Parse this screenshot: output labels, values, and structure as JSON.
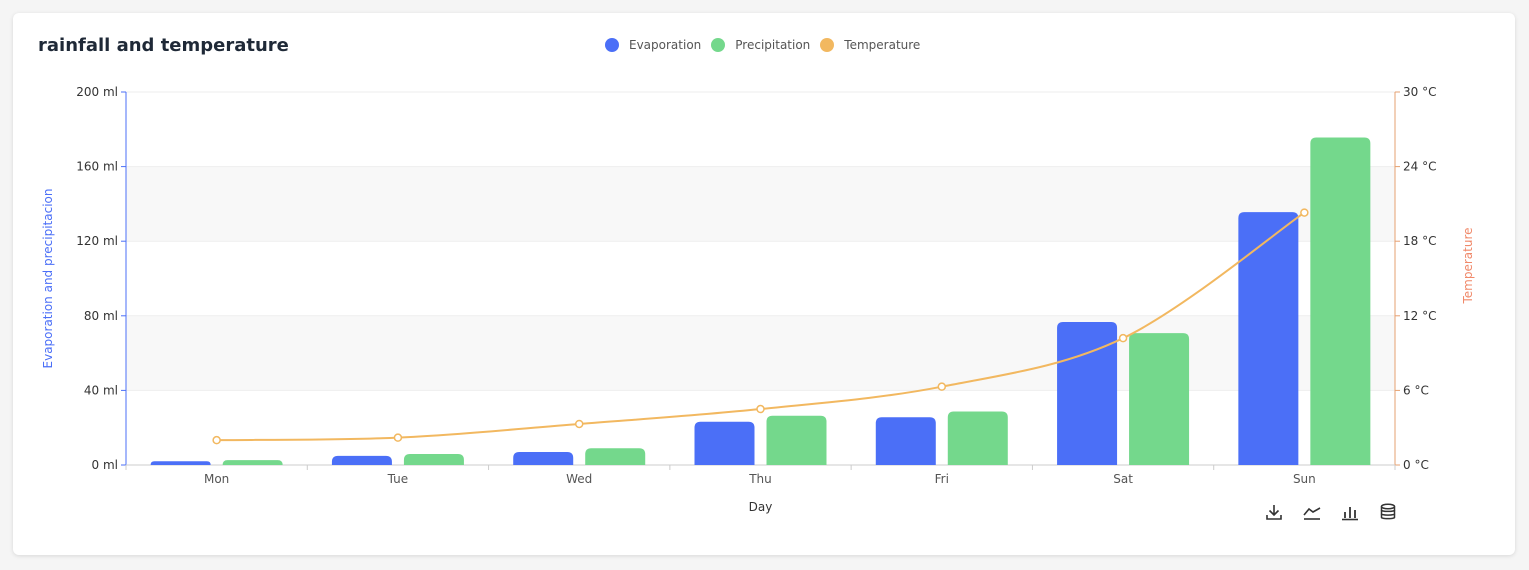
{
  "chart_data": {
    "type": "bar",
    "title": "rainfall and temperature",
    "categories": [
      "Mon",
      "Tue",
      "Wed",
      "Thu",
      "Fri",
      "Sat",
      "Sun"
    ],
    "xlabel": "Day",
    "ylabel_left": "Evaporation and precipitacion",
    "ylabel_right": "Temperature",
    "y_left": {
      "min": 0,
      "max": 200,
      "ticks": [
        0,
        40,
        80,
        120,
        160,
        200
      ],
      "unit": "ml"
    },
    "y_right": {
      "min": 0,
      "max": 30,
      "ticks": [
        0,
        6,
        12,
        18,
        24,
        30
      ],
      "unit": "°C"
    },
    "series": [
      {
        "name": "Evaporation",
        "type": "bar",
        "axis": "left",
        "color": "#4b6ff7",
        "values": [
          2,
          4.9,
          7,
          23.2,
          25.6,
          76.7,
          135.6
        ]
      },
      {
        "name": "Precipitation",
        "type": "bar",
        "axis": "left",
        "color": "#74d88c",
        "values": [
          2.6,
          5.9,
          9,
          26.4,
          28.7,
          70.7,
          175.6
        ]
      },
      {
        "name": "Temperature",
        "type": "line",
        "axis": "right",
        "color": "#f2b860",
        "values": [
          2.0,
          2.2,
          3.3,
          4.5,
          6.3,
          10.2,
          20.3
        ]
      }
    ],
    "grid": true,
    "legend_position": "top-center"
  },
  "colors": {
    "left_axis": "#4b6ff7",
    "right_axis_label": "#f0896a",
    "axis_line": "#e6a070"
  },
  "toolbox": [
    "download-icon",
    "line-chart-icon",
    "bar-chart-icon",
    "database-icon"
  ]
}
